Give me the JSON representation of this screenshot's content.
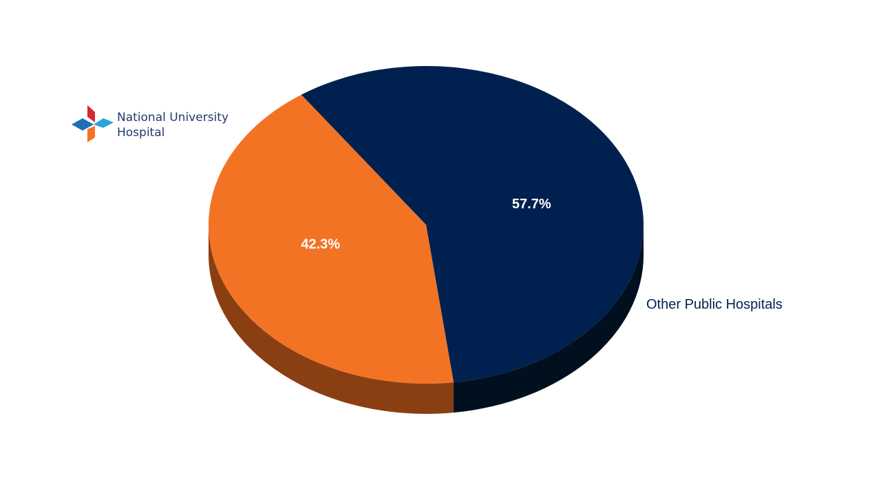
{
  "chart_data": {
    "type": "pie",
    "categories": [
      "National University Hospital",
      "Other Public Hospitals"
    ],
    "values": [
      42.3,
      57.7
    ],
    "value_labels": [
      "42.3%",
      "57.7%"
    ],
    "colors": [
      "#f37325",
      "#00214f"
    ],
    "side_colors": [
      "#8a3f12",
      "#00101f"
    ]
  }
}
